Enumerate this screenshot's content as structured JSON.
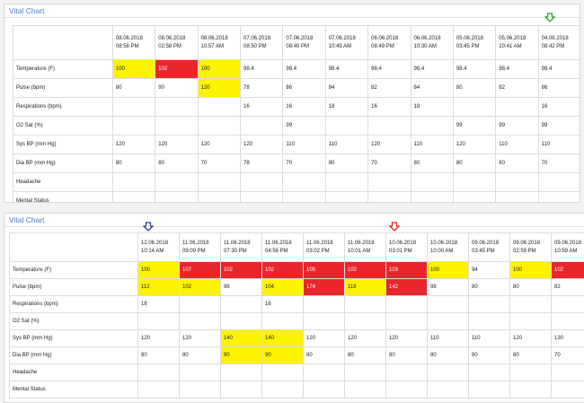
{
  "top": {
    "title": "Vital Chart",
    "columns": [
      {
        "date": "08.06.2018",
        "time": "08:58 PM"
      },
      {
        "date": "08.06.2018",
        "time": "02:58 PM"
      },
      {
        "date": "08.06.2018",
        "time": "10:57 AM"
      },
      {
        "date": "07.06.2018",
        "time": "08:50 PM"
      },
      {
        "date": "07.06.2018",
        "time": "08:40 PM"
      },
      {
        "date": "07.06.2018",
        "time": "10:49 AM"
      },
      {
        "date": "06.06.2018",
        "time": "08:49 PM"
      },
      {
        "date": "06.06.2018",
        "time": "10:30 AM"
      },
      {
        "date": "05.06.2018",
        "time": "03:45 PM"
      },
      {
        "date": "05.06.2018",
        "time": "10:41 AM"
      },
      {
        "date": "04.06.2018",
        "time": "08:42 PM"
      }
    ],
    "rows": [
      {
        "label": "Temperature (F)",
        "cells": [
          {
            "v": "100",
            "c": "yellow"
          },
          {
            "v": "102",
            "c": "red"
          },
          {
            "v": "100",
            "c": "yellow"
          },
          {
            "v": "98.4",
            "c": ""
          },
          {
            "v": "98.4",
            "c": ""
          },
          {
            "v": "98.4",
            "c": ""
          },
          {
            "v": "98.4",
            "c": ""
          },
          {
            "v": "98.4",
            "c": ""
          },
          {
            "v": "98.4",
            "c": ""
          },
          {
            "v": "98.4",
            "c": ""
          },
          {
            "v": "98.4",
            "c": ""
          }
        ]
      },
      {
        "label": "Pulse (bpm)",
        "cells": [
          {
            "v": "80",
            "c": ""
          },
          {
            "v": "90",
            "c": ""
          },
          {
            "v": "120",
            "c": "yellow"
          },
          {
            "v": "78",
            "c": ""
          },
          {
            "v": "86",
            "c": ""
          },
          {
            "v": "84",
            "c": ""
          },
          {
            "v": "82",
            "c": ""
          },
          {
            "v": "84",
            "c": ""
          },
          {
            "v": "80",
            "c": ""
          },
          {
            "v": "82",
            "c": ""
          },
          {
            "v": "86",
            "c": ""
          }
        ]
      },
      {
        "label": "Respirations (bpm)",
        "cells": [
          {
            "v": "",
            "c": ""
          },
          {
            "v": "",
            "c": ""
          },
          {
            "v": "",
            "c": ""
          },
          {
            "v": "16",
            "c": ""
          },
          {
            "v": "16",
            "c": ""
          },
          {
            "v": "18",
            "c": ""
          },
          {
            "v": "16",
            "c": ""
          },
          {
            "v": "18",
            "c": ""
          },
          {
            "v": "",
            "c": ""
          },
          {
            "v": "",
            "c": ""
          },
          {
            "v": "16",
            "c": ""
          }
        ]
      },
      {
        "label": "O2 Sat (%)",
        "cells": [
          {
            "v": "",
            "c": ""
          },
          {
            "v": "",
            "c": ""
          },
          {
            "v": "",
            "c": ""
          },
          {
            "v": "",
            "c": ""
          },
          {
            "v": "99",
            "c": ""
          },
          {
            "v": "",
            "c": ""
          },
          {
            "v": "",
            "c": ""
          },
          {
            "v": "",
            "c": ""
          },
          {
            "v": "99",
            "c": ""
          },
          {
            "v": "99",
            "c": ""
          },
          {
            "v": "99",
            "c": ""
          }
        ]
      },
      {
        "label": "Sys BP (mm Hg)",
        "cells": [
          {
            "v": "120",
            "c": ""
          },
          {
            "v": "120",
            "c": ""
          },
          {
            "v": "120",
            "c": ""
          },
          {
            "v": "120",
            "c": ""
          },
          {
            "v": "110",
            "c": ""
          },
          {
            "v": "110",
            "c": ""
          },
          {
            "v": "120",
            "c": ""
          },
          {
            "v": "110",
            "c": ""
          },
          {
            "v": "120",
            "c": ""
          },
          {
            "v": "110",
            "c": ""
          },
          {
            "v": "110",
            "c": ""
          }
        ]
      },
      {
        "label": "Dia BP (mm Hg)",
        "cells": [
          {
            "v": "80",
            "c": ""
          },
          {
            "v": "80",
            "c": ""
          },
          {
            "v": "70",
            "c": ""
          },
          {
            "v": "78",
            "c": ""
          },
          {
            "v": "70",
            "c": ""
          },
          {
            "v": "80",
            "c": ""
          },
          {
            "v": "70",
            "c": ""
          },
          {
            "v": "80",
            "c": ""
          },
          {
            "v": "80",
            "c": ""
          },
          {
            "v": "80",
            "c": ""
          },
          {
            "v": "70",
            "c": ""
          }
        ]
      },
      {
        "label": "Headache",
        "cells": [
          {
            "v": "",
            "c": ""
          },
          {
            "v": "",
            "c": ""
          },
          {
            "v": "",
            "c": ""
          },
          {
            "v": "",
            "c": ""
          },
          {
            "v": "",
            "c": ""
          },
          {
            "v": "",
            "c": ""
          },
          {
            "v": "",
            "c": ""
          },
          {
            "v": "",
            "c": ""
          },
          {
            "v": "",
            "c": ""
          },
          {
            "v": "",
            "c": ""
          },
          {
            "v": "",
            "c": ""
          }
        ]
      },
      {
        "label": "Mental Status",
        "cells": [
          {
            "v": "",
            "c": ""
          },
          {
            "v": "",
            "c": ""
          },
          {
            "v": "",
            "c": ""
          },
          {
            "v": "",
            "c": ""
          },
          {
            "v": "",
            "c": ""
          },
          {
            "v": "",
            "c": ""
          },
          {
            "v": "",
            "c": ""
          },
          {
            "v": "",
            "c": ""
          },
          {
            "v": "",
            "c": ""
          },
          {
            "v": "",
            "c": ""
          },
          {
            "v": "",
            "c": ""
          }
        ]
      }
    ]
  },
  "bottom": {
    "title": "Vital Chart",
    "columns": [
      {
        "date": "12.06.2018",
        "time": "10:14 AM"
      },
      {
        "date": "11.06.2018",
        "time": "09:09 PM"
      },
      {
        "date": "11.06.2018",
        "time": "07:30 PM"
      },
      {
        "date": "11.06.2018",
        "time": "04:56 PM"
      },
      {
        "date": "11.06.2018",
        "time": "03:02 PM"
      },
      {
        "date": "11.06.2018",
        "time": "10:01 AM"
      },
      {
        "date": "10.06.2018",
        "time": "03:01 PM"
      },
      {
        "date": "10.06.2018",
        "time": "10:00 AM"
      },
      {
        "date": "09.06.2018",
        "time": "03:45 PM"
      },
      {
        "date": "09.06.2018",
        "time": "02:59 PM"
      },
      {
        "date": "09.06.2018",
        "time": "10:59 AM"
      },
      {
        "date": "",
        "time": ""
      }
    ],
    "rows": [
      {
        "label": "Temperature (F)",
        "cells": [
          {
            "v": "100",
            "c": "yellow"
          },
          {
            "v": "107",
            "c": "red"
          },
          {
            "v": "102",
            "c": "red"
          },
          {
            "v": "102",
            "c": "red"
          },
          {
            "v": "105",
            "c": "red"
          },
          {
            "v": "102",
            "c": "red"
          },
          {
            "v": "103",
            "c": "red"
          },
          {
            "v": "100",
            "c": "yellow"
          },
          {
            "v": "94",
            "c": ""
          },
          {
            "v": "100",
            "c": "yellow"
          },
          {
            "v": "102",
            "c": "red"
          },
          {
            "v": "",
            "c": "red"
          }
        ]
      },
      {
        "label": "Pulse (bpm)",
        "cells": [
          {
            "v": "112",
            "c": "yellow"
          },
          {
            "v": "102",
            "c": "yellow"
          },
          {
            "v": "96",
            "c": ""
          },
          {
            "v": "104",
            "c": "yellow"
          },
          {
            "v": "174",
            "c": "red"
          },
          {
            "v": "118",
            "c": "yellow"
          },
          {
            "v": "142",
            "c": "red"
          },
          {
            "v": "98",
            "c": ""
          },
          {
            "v": "80",
            "c": ""
          },
          {
            "v": "80",
            "c": ""
          },
          {
            "v": "82",
            "c": ""
          },
          {
            "v": "",
            "c": ""
          }
        ]
      },
      {
        "label": "Respirations (bpm)",
        "cells": [
          {
            "v": "18",
            "c": ""
          },
          {
            "v": "",
            "c": ""
          },
          {
            "v": "",
            "c": ""
          },
          {
            "v": "16",
            "c": ""
          },
          {
            "v": "",
            "c": ""
          },
          {
            "v": "",
            "c": ""
          },
          {
            "v": "",
            "c": ""
          },
          {
            "v": "",
            "c": ""
          },
          {
            "v": "",
            "c": ""
          },
          {
            "v": "",
            "c": ""
          },
          {
            "v": "",
            "c": ""
          },
          {
            "v": "",
            "c": ""
          }
        ]
      },
      {
        "label": "O2 Sat (%)",
        "cells": [
          {
            "v": "",
            "c": ""
          },
          {
            "v": "",
            "c": ""
          },
          {
            "v": "",
            "c": ""
          },
          {
            "v": "",
            "c": ""
          },
          {
            "v": "",
            "c": ""
          },
          {
            "v": "",
            "c": ""
          },
          {
            "v": "",
            "c": ""
          },
          {
            "v": "",
            "c": ""
          },
          {
            "v": "",
            "c": ""
          },
          {
            "v": "",
            "c": ""
          },
          {
            "v": "",
            "c": ""
          },
          {
            "v": "",
            "c": ""
          }
        ]
      },
      {
        "label": "Sys BP (mm Hg)",
        "cells": [
          {
            "v": "120",
            "c": ""
          },
          {
            "v": "120",
            "c": ""
          },
          {
            "v": "140",
            "c": "yellow"
          },
          {
            "v": "140",
            "c": "yellow"
          },
          {
            "v": "120",
            "c": ""
          },
          {
            "v": "120",
            "c": ""
          },
          {
            "v": "120",
            "c": ""
          },
          {
            "v": "110",
            "c": ""
          },
          {
            "v": "110",
            "c": ""
          },
          {
            "v": "120",
            "c": ""
          },
          {
            "v": "130",
            "c": ""
          },
          {
            "v": "",
            "c": ""
          }
        ]
      },
      {
        "label": "Dia BP (mm Hg)",
        "cells": [
          {
            "v": "80",
            "c": ""
          },
          {
            "v": "80",
            "c": ""
          },
          {
            "v": "90",
            "c": "yellow"
          },
          {
            "v": "90",
            "c": "yellow"
          },
          {
            "v": "80",
            "c": ""
          },
          {
            "v": "80",
            "c": ""
          },
          {
            "v": "80",
            "c": ""
          },
          {
            "v": "80",
            "c": ""
          },
          {
            "v": "80",
            "c": ""
          },
          {
            "v": "80",
            "c": ""
          },
          {
            "v": "70",
            "c": ""
          },
          {
            "v": "",
            "c": ""
          }
        ]
      },
      {
        "label": "Headache",
        "cells": [
          {
            "v": "",
            "c": ""
          },
          {
            "v": "",
            "c": ""
          },
          {
            "v": "",
            "c": ""
          },
          {
            "v": "",
            "c": ""
          },
          {
            "v": "",
            "c": ""
          },
          {
            "v": "",
            "c": ""
          },
          {
            "v": "",
            "c": ""
          },
          {
            "v": "",
            "c": ""
          },
          {
            "v": "",
            "c": ""
          },
          {
            "v": "",
            "c": ""
          },
          {
            "v": "",
            "c": ""
          },
          {
            "v": "",
            "c": ""
          }
        ]
      },
      {
        "label": "Mental Status",
        "cells": [
          {
            "v": "",
            "c": ""
          },
          {
            "v": "",
            "c": ""
          },
          {
            "v": "",
            "c": ""
          },
          {
            "v": "",
            "c": ""
          },
          {
            "v": "",
            "c": ""
          },
          {
            "v": "",
            "c": ""
          },
          {
            "v": "",
            "c": ""
          },
          {
            "v": "",
            "c": ""
          },
          {
            "v": "",
            "c": ""
          },
          {
            "v": "",
            "c": ""
          },
          {
            "v": "",
            "c": ""
          },
          {
            "v": "",
            "c": ""
          }
        ]
      }
    ]
  },
  "markers": [
    {
      "name": "green-arrow-icon",
      "color": "#2aa52a"
    },
    {
      "name": "blue-arrow-icon",
      "color": "#2b3a9c"
    },
    {
      "name": "red-arrow-icon",
      "color": "#e02020"
    }
  ]
}
